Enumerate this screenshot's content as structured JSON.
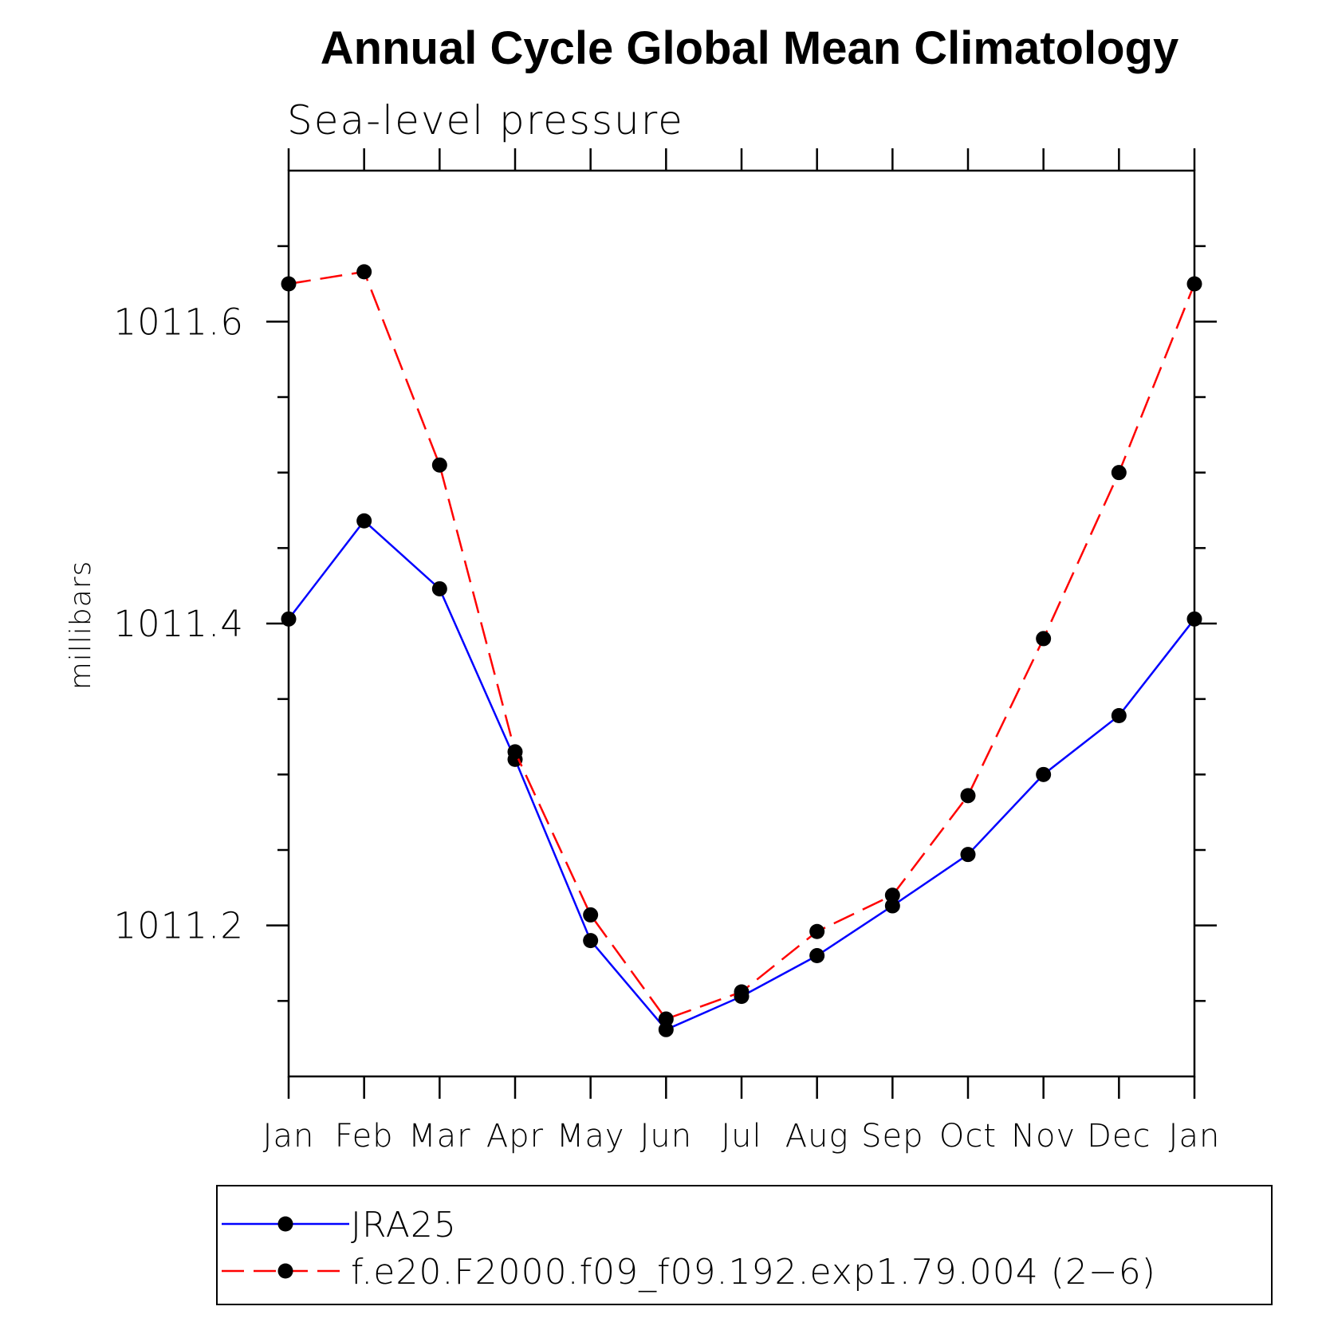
{
  "chart_data": {
    "type": "line",
    "title": "Annual Cycle Global Mean Climatology",
    "subtitle": "Sea-level pressure",
    "xlabel": "",
    "ylabel": "millibars",
    "categories": [
      "Jan",
      "Feb",
      "Mar",
      "Apr",
      "May",
      "Jun",
      "Jul",
      "Aug",
      "Sep",
      "Oct",
      "Nov",
      "Dec",
      "Jan"
    ],
    "ylim": [
      1011.1,
      1011.7
    ],
    "yticks_major": [
      1011.2,
      1011.4,
      1011.6
    ],
    "yticks_major_labels": [
      "1011.2",
      "1011.4",
      "1011.6"
    ],
    "yticks_minor": [
      1011.15,
      1011.25,
      1011.3,
      1011.35,
      1011.45,
      1011.5,
      1011.55,
      1011.65
    ],
    "grid": false,
    "legend_position": "bottom",
    "series": [
      {
        "name": "JRA25",
        "color": "#0000ff",
        "line_style": "solid",
        "marker": "filled-circle",
        "values": [
          1011.403,
          1011.468,
          1011.423,
          1011.31,
          1011.19,
          1011.131,
          1011.153,
          1011.18,
          1011.213,
          1011.247,
          1011.3,
          1011.339,
          1011.403
        ]
      },
      {
        "name": "f.e20.F2000.f09_f09.192.exp1.79.004 (2−6)",
        "color": "#ff0000",
        "line_style": "dashed",
        "marker": "filled-circle",
        "values": [
          1011.625,
          1011.633,
          1011.505,
          1011.315,
          1011.207,
          1011.138,
          1011.156,
          1011.196,
          1011.22,
          1011.286,
          1011.39,
          1011.5,
          1011.625
        ]
      }
    ]
  }
}
